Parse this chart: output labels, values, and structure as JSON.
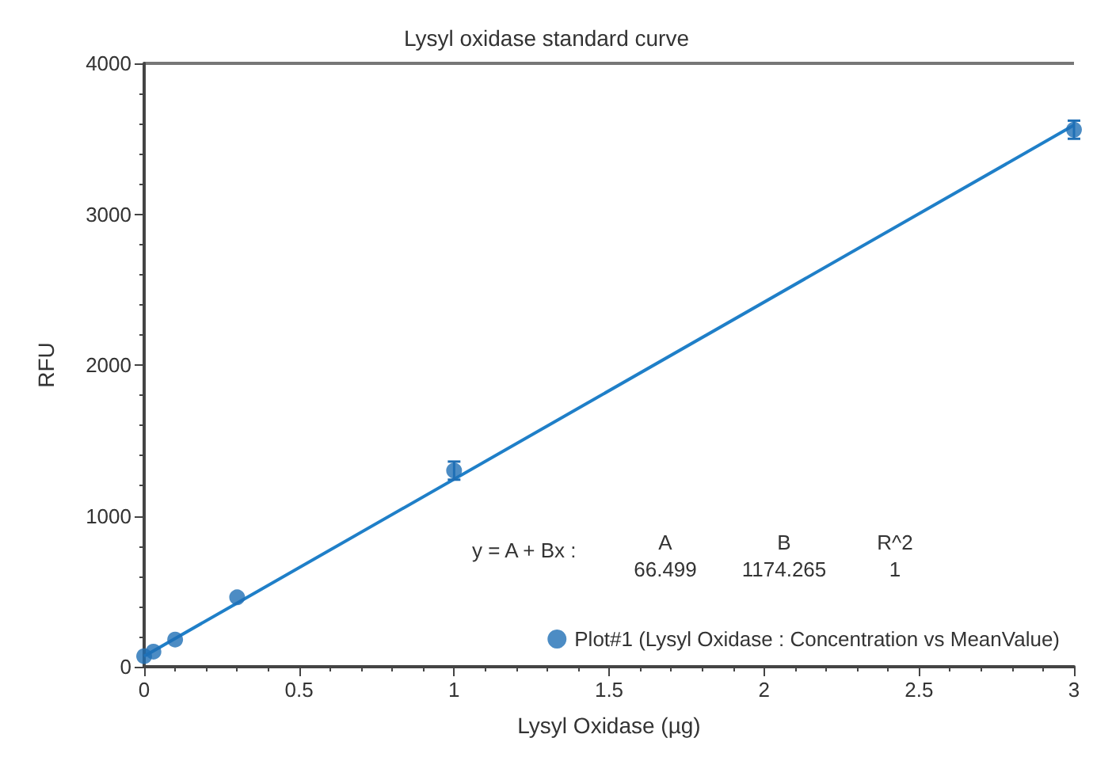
{
  "chart_data": {
    "type": "scatter",
    "title": "Lysyl oxidase standard curve",
    "xlabel": "Lysyl Oxidase (µg)",
    "ylabel": "RFU",
    "annotations": [
      "y = A + Bx :",
      "A",
      "66.499",
      "B",
      "1174.265",
      "R^2",
      "1"
    ],
    "series": [
      {
        "name": "Plot#1 (Lysyl Oxidase : Concentration vs MeanValue)",
        "color": "#1f6fb5",
        "x": [
          0,
          0.03,
          0.1,
          0.3,
          1,
          3
        ],
        "values": [
          70,
          100,
          180,
          460,
          1300,
          3560
        ],
        "errors": [
          null,
          null,
          null,
          null,
          60,
          60
        ],
        "marker": "circle"
      },
      {
        "type": "line",
        "color": "#1f7fc8",
        "x": [
          0,
          3
        ],
        "values": [
          70,
          3590
        ],
        "marker": "none"
      }
    ],
    "xlim": [
      0,
      3
    ],
    "xticks": [
      0,
      0.5,
      1,
      1.5,
      2,
      2.5,
      3
    ],
    "ylim": [
      0,
      4000
    ],
    "yticks": [
      0,
      1000,
      2000,
      3000,
      4000
    ],
    "grid": false,
    "legend": "bottom right",
    "line_style": "solid"
  }
}
